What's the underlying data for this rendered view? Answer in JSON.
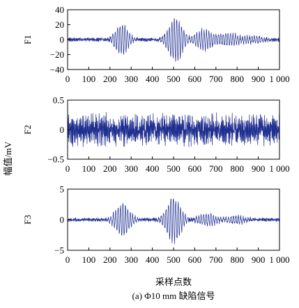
{
  "figure": {
    "caption": "(a) Φ10 mm 缺陷信号",
    "shared_ylabel": "幅值/mV",
    "xlabel": "采样点数"
  },
  "chart_data": [
    {
      "type": "line",
      "ylabel": "F1",
      "xlim": [
        0,
        1000
      ],
      "ylim": [
        -40,
        40
      ],
      "xticks": [
        "0",
        "100",
        "200",
        "300",
        "400",
        "500",
        "600",
        "700",
        "800",
        "900",
        "1 000"
      ],
      "yticks": [
        "40",
        "20",
        "0",
        "−20",
        "−40"
      ],
      "color": "#1f2f8f",
      "signal": {
        "noise_amplitude": 3,
        "bursts": [
          {
            "center": 255,
            "amplitude": 23,
            "width": 40
          },
          {
            "center": 510,
            "amplitude": 32,
            "width": 45
          },
          {
            "center": 640,
            "amplitude": 14,
            "width": 60
          },
          {
            "center": 760,
            "amplitude": 9,
            "width": 60
          },
          {
            "center": 880,
            "amplitude": 5,
            "width": 60
          }
        ]
      }
    },
    {
      "type": "line",
      "ylabel": "F2",
      "xlim": [
        0,
        1000
      ],
      "ylim": [
        -0.5,
        0.5
      ],
      "xticks": [
        "0",
        "100",
        "200",
        "300",
        "400",
        "500",
        "600",
        "700",
        "800",
        "900",
        "1 000"
      ],
      "yticks": [
        "0.5",
        "0",
        "−0.5"
      ],
      "color": "#1f2f8f",
      "signal": {
        "noise_amplitude": 0.3,
        "bursts": []
      }
    },
    {
      "type": "line",
      "ylabel": "F3",
      "xlim": [
        0,
        1000
      ],
      "ylim": [
        -5,
        5
      ],
      "xticks": [
        "0",
        "100",
        "200",
        "300",
        "400",
        "500",
        "600",
        "700",
        "800",
        "900",
        "1 000"
      ],
      "yticks": [
        "5",
        "0",
        "−5"
      ],
      "color": "#1f2f8f",
      "signal": {
        "noise_amplitude": 0.35,
        "bursts": [
          {
            "center": 260,
            "amplitude": 2.9,
            "width": 45
          },
          {
            "center": 500,
            "amplitude": 4.0,
            "width": 45
          },
          {
            "center": 660,
            "amplitude": 1.1,
            "width": 60
          },
          {
            "center": 790,
            "amplitude": 0.7,
            "width": 60
          }
        ]
      }
    }
  ]
}
